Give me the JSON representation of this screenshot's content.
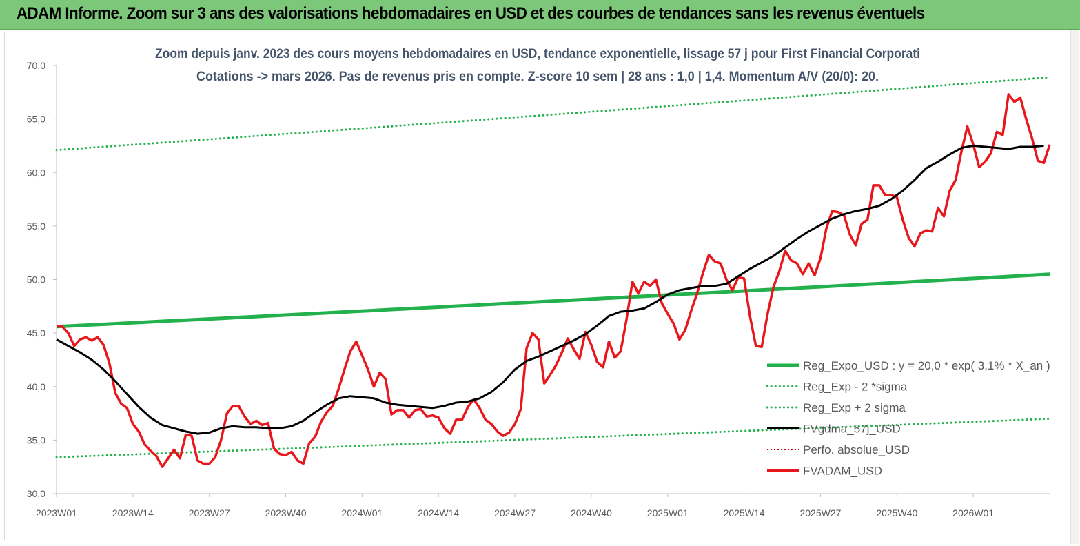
{
  "header": {
    "title": "ADAM Informe. Zoom sur 3 ans des valorisations hebdomadaires en USD et des courbes de tendances sans les revenus éventuels"
  },
  "chart_data": {
    "type": "line",
    "title_line1": "Zoom depuis janv. 2023 des cours moyens hebdomadaires en USD, tendance exponentielle, lissage 57 j pour First Financial Corporati",
    "title_line2": "Cotations -> mars 2026. Pas de revenus pris en compte. Z-score 10 sem  | 28 ans : 1,0 | 1,4. Momentum A/V (20/0): 20.",
    "xlabel": "",
    "ylabel": "",
    "ylim": [
      30,
      70
    ],
    "yticks": [
      "30,0",
      "35,0",
      "40,0",
      "45,0",
      "50,0",
      "55,0",
      "60,0",
      "65,0",
      "70,0"
    ],
    "xticks": [
      "2023W01",
      "2023W14",
      "2023W27",
      "2023W40",
      "2024W01",
      "2024W14",
      "2024W27",
      "2024W40",
      "2025W01",
      "2025W14",
      "2025W27",
      "2025W40",
      "2026W01"
    ],
    "x_range_weeks": [
      0,
      169
    ],
    "legend_position": "right",
    "grid": false,
    "colors": {
      "reg_expo": "#22b14c",
      "sigma": "#22b14c",
      "fvgdma": "#000000",
      "perfo": "#c00000",
      "fvadam": "#e8171b"
    },
    "series": [
      {
        "name": "Reg_Expo_USD : y = 20,0 * exp( 3,1% *  X_an )",
        "style": "solid-thick",
        "x": [
          0,
          169
        ],
        "values": [
          45.6,
          50.5
        ]
      },
      {
        "name": "Reg_Exp - 2 *sigma",
        "style": "dotted",
        "x": [
          0,
          169
        ],
        "values": [
          33.4,
          37.0
        ]
      },
      {
        "name": "Reg_Exp + 2 sigma",
        "style": "dotted",
        "x": [
          0,
          169
        ],
        "values": [
          62.1,
          68.9
        ]
      },
      {
        "name": "FVgdma_57j_USD",
        "style": "solid",
        "x": [
          0,
          2,
          4,
          6,
          8,
          10,
          12,
          14,
          16,
          18,
          20,
          22,
          24,
          26,
          28,
          30,
          32,
          34,
          36,
          38,
          40,
          42,
          44,
          46,
          48,
          50,
          52,
          54,
          56,
          58,
          60,
          62,
          64,
          66,
          68,
          70,
          72,
          74,
          76,
          78,
          80,
          82,
          84,
          86,
          88,
          90,
          92,
          94,
          96,
          98,
          100,
          102,
          104,
          106,
          108,
          110,
          112,
          114,
          116,
          118,
          120,
          122,
          124,
          126,
          128,
          130,
          132,
          134,
          136,
          138,
          140,
          142,
          144,
          146,
          148,
          150,
          152,
          154,
          156,
          158,
          160,
          162,
          164,
          166,
          168
        ],
        "values": [
          44.4,
          43.8,
          43.2,
          42.5,
          41.6,
          40.5,
          39.3,
          38.1,
          37.1,
          36.4,
          36.1,
          35.8,
          35.6,
          35.7,
          36.1,
          36.3,
          36.2,
          36.2,
          36.1,
          36.1,
          36.3,
          36.8,
          37.6,
          38.3,
          38.9,
          39.1,
          39.0,
          38.9,
          38.5,
          38.3,
          38.2,
          38.1,
          38.0,
          38.2,
          38.5,
          38.6,
          38.9,
          39.5,
          40.4,
          41.6,
          42.4,
          42.8,
          43.3,
          43.8,
          44.3,
          44.9,
          45.7,
          46.6,
          47.0,
          47.1,
          47.3,
          47.9,
          48.6,
          49.0,
          49.2,
          49.4,
          49.4,
          49.6,
          50.3,
          51.0,
          51.6,
          52.2,
          53.0,
          53.8,
          54.5,
          55.1,
          55.7,
          56.1,
          56.4,
          56.6,
          56.9,
          57.5,
          58.3,
          59.3,
          60.4,
          61.0,
          61.7,
          62.3,
          62.5,
          62.4,
          62.3,
          62.2,
          62.4,
          62.4,
          62.5
        ]
      },
      {
        "name": "Perfo. absolue_USD",
        "style": "dotted",
        "x": [],
        "values": []
      },
      {
        "name": "FVADAM_USD",
        "style": "solid-thick",
        "x": [
          0,
          1,
          2,
          3,
          4,
          5,
          6,
          7,
          8,
          9,
          10,
          11,
          12,
          13,
          14,
          15,
          16,
          17,
          18,
          19,
          20,
          21,
          22,
          23,
          24,
          25,
          26,
          27,
          28,
          29,
          30,
          31,
          32,
          33,
          34,
          35,
          36,
          37,
          38,
          39,
          40,
          41,
          42,
          43,
          44,
          45,
          46,
          47,
          48,
          49,
          50,
          51,
          52,
          53,
          54,
          55,
          56,
          57,
          58,
          59,
          60,
          61,
          62,
          63,
          64,
          65,
          66,
          67,
          68,
          69,
          70,
          71,
          72,
          73,
          74,
          75,
          76,
          77,
          78,
          79,
          80,
          81,
          82,
          83,
          84,
          85,
          86,
          87,
          88,
          89,
          90,
          91,
          92,
          93,
          94,
          95,
          96,
          97,
          98,
          99,
          100,
          101,
          102,
          103,
          104,
          105,
          106,
          107,
          108,
          109,
          110,
          111,
          112,
          113,
          114,
          115,
          116,
          117,
          118,
          119,
          120,
          121,
          122,
          123,
          124,
          125,
          126,
          127,
          128,
          129,
          130,
          131,
          132,
          133,
          134,
          135,
          136,
          137,
          138,
          139,
          140,
          141,
          142,
          143,
          144,
          145,
          146,
          147,
          148,
          149,
          150,
          151,
          152,
          153,
          154,
          155,
          156,
          157,
          158,
          159,
          160,
          161,
          162,
          163,
          164,
          165,
          166,
          167,
          168,
          169
        ],
        "values": [
          45.6,
          45.6,
          45.0,
          43.8,
          44.4,
          44.6,
          44.3,
          44.6,
          43.9,
          42.2,
          39.4,
          38.4,
          38.0,
          36.5,
          35.8,
          34.6,
          34.0,
          33.5,
          32.5,
          33.3,
          34.1,
          33.3,
          35.5,
          35.4,
          33.1,
          32.8,
          32.8,
          33.4,
          35.0,
          37.5,
          38.2,
          38.2,
          37.2,
          36.5,
          36.8,
          36.4,
          36.6,
          34.2,
          33.7,
          33.6,
          33.9,
          33.1,
          32.8,
          34.7,
          35.3,
          36.7,
          37.6,
          38.2,
          39.8,
          41.6,
          43.3,
          44.2,
          42.9,
          41.6,
          40.0,
          41.3,
          40.7,
          37.4,
          37.8,
          37.8,
          37.1,
          37.8,
          37.9,
          37.2,
          37.3,
          37.1,
          36.1,
          35.6,
          36.9,
          36.9,
          38.1,
          38.8,
          38.0,
          36.9,
          36.5,
          35.8,
          35.4,
          35.7,
          36.5,
          37.9,
          43.6,
          45.0,
          44.4,
          40.3,
          41.1,
          42.0,
          43.2,
          44.5,
          43.5,
          42.6,
          45.1,
          43.9,
          42.3,
          41.8,
          44.2,
          42.7,
          43.3,
          46.3,
          49.8,
          48.7,
          49.8,
          49.4,
          50.0,
          47.8,
          46.8,
          45.9,
          44.4,
          45.3,
          47.1,
          48.7,
          50.6,
          52.3,
          51.7,
          51.5,
          50.0,
          49.0,
          50.2,
          50.1,
          46.6,
          43.8,
          43.7,
          46.8,
          49.3,
          50.8,
          52.7,
          51.8,
          51.5,
          50.5,
          51.5,
          50.4,
          52.0,
          54.8,
          56.4,
          56.3,
          56.0,
          54.2,
          53.2,
          55.2,
          55.6,
          58.8,
          58.8,
          57.9,
          57.9,
          57.7,
          55.6,
          53.9,
          53.1,
          54.3,
          54.6,
          54.5,
          56.7,
          55.9,
          58.3,
          59.3,
          62.0,
          64.3,
          62.6,
          60.5,
          61.0,
          61.8,
          63.8,
          63.5,
          67.3,
          66.6,
          67.0,
          65.0,
          63.2,
          61.1,
          60.9,
          62.6
        ]
      }
    ]
  }
}
